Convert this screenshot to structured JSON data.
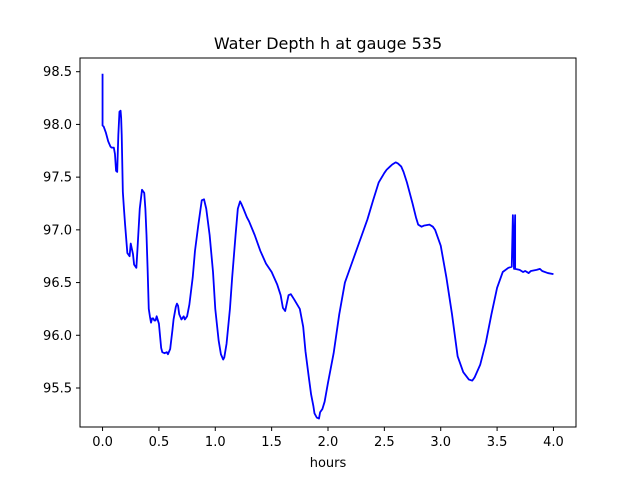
{
  "chart_data": {
    "type": "line",
    "title": "Water Depth h at gauge 535",
    "xlabel": "hours",
    "ylabel": "",
    "xlim": [
      -0.2,
      4.2
    ],
    "ylim": [
      95.13,
      98.63
    ],
    "xticks": [
      0.0,
      0.5,
      1.0,
      1.5,
      2.0,
      2.5,
      3.0,
      3.5,
      4.0
    ],
    "xtick_labels": [
      "0.0",
      "0.5",
      "1.0",
      "1.5",
      "2.0",
      "2.5",
      "3.0",
      "3.5",
      "4.0"
    ],
    "yticks": [
      95.5,
      96.0,
      96.5,
      97.0,
      97.5,
      98.0,
      98.5
    ],
    "ytick_labels": [
      "95.5",
      "96.0",
      "96.5",
      "97.0",
      "97.5",
      "98.0",
      "98.5"
    ],
    "grid": false,
    "legend": "none",
    "series": [
      {
        "color": "#0000ff",
        "x": [
          0.0,
          0.0,
          0.01,
          0.03,
          0.05,
          0.07,
          0.08,
          0.1,
          0.11,
          0.12,
          0.13,
          0.14,
          0.15,
          0.16,
          0.165,
          0.17,
          0.18,
          0.19,
          0.2,
          0.22,
          0.24,
          0.25,
          0.27,
          0.28,
          0.3,
          0.31,
          0.33,
          0.35,
          0.37,
          0.38,
          0.39,
          0.4,
          0.41,
          0.42,
          0.43,
          0.44,
          0.45,
          0.46,
          0.47,
          0.48,
          0.5,
          0.52,
          0.53,
          0.55,
          0.57,
          0.58,
          0.6,
          0.62,
          0.63,
          0.65,
          0.66,
          0.67,
          0.68,
          0.7,
          0.72,
          0.73,
          0.75,
          0.77,
          0.8,
          0.82,
          0.85,
          0.88,
          0.9,
          0.92,
          0.95,
          0.98,
          1.0,
          1.03,
          1.05,
          1.07,
          1.08,
          1.1,
          1.13,
          1.15,
          1.18,
          1.2,
          1.22,
          1.23,
          1.25,
          1.28,
          1.3,
          1.35,
          1.4,
          1.45,
          1.5,
          1.55,
          1.58,
          1.6,
          1.62,
          1.65,
          1.67,
          1.7,
          1.75,
          1.78,
          1.8,
          1.83,
          1.85,
          1.87,
          1.88,
          1.9,
          1.92,
          1.93,
          1.95,
          1.97,
          2.0,
          2.05,
          2.1,
          2.15,
          2.2,
          2.25,
          2.3,
          2.35,
          2.4,
          2.45,
          2.5,
          2.52,
          2.55,
          2.57,
          2.6,
          2.62,
          2.65,
          2.67,
          2.7,
          2.75,
          2.78,
          2.8,
          2.83,
          2.85,
          2.9,
          2.93,
          2.95,
          3.0,
          3.05,
          3.1,
          3.15,
          3.2,
          3.25,
          3.28,
          3.3,
          3.35,
          3.4,
          3.45,
          3.5,
          3.55,
          3.6,
          3.63,
          3.64,
          3.64,
          3.65,
          3.66,
          3.66,
          3.7,
          3.73,
          3.75,
          3.78,
          3.8,
          3.85,
          3.88,
          3.9,
          3.95,
          4.0
        ],
        "y": [
          98.48,
          97.99,
          97.98,
          97.92,
          97.84,
          97.79,
          97.78,
          97.78,
          97.72,
          97.56,
          97.55,
          97.9,
          98.12,
          98.13,
          98.06,
          97.9,
          97.36,
          97.2,
          97.05,
          96.78,
          96.75,
          96.87,
          96.77,
          96.67,
          96.64,
          96.82,
          97.2,
          97.38,
          97.35,
          97.2,
          96.95,
          96.62,
          96.25,
          96.18,
          96.12,
          96.16,
          96.16,
          96.14,
          96.14,
          96.18,
          96.11,
          95.88,
          95.84,
          95.83,
          95.84,
          95.82,
          95.87,
          96.05,
          96.15,
          96.27,
          96.3,
          96.28,
          96.2,
          96.15,
          96.18,
          96.15,
          96.18,
          96.29,
          96.55,
          96.8,
          97.05,
          97.28,
          97.29,
          97.2,
          96.95,
          96.6,
          96.25,
          95.95,
          95.82,
          95.77,
          95.79,
          95.92,
          96.25,
          96.55,
          96.95,
          97.2,
          97.27,
          97.25,
          97.2,
          97.12,
          97.08,
          96.95,
          96.8,
          96.68,
          96.6,
          96.48,
          96.38,
          96.26,
          96.23,
          96.38,
          96.39,
          96.34,
          96.25,
          96.08,
          95.85,
          95.6,
          95.44,
          95.33,
          95.26,
          95.22,
          95.21,
          95.27,
          95.3,
          95.37,
          95.55,
          95.83,
          96.2,
          96.5,
          96.65,
          96.8,
          96.95,
          97.1,
          97.28,
          97.45,
          97.54,
          97.57,
          97.6,
          97.62,
          97.64,
          97.63,
          97.6,
          97.55,
          97.45,
          97.25,
          97.12,
          97.05,
          97.03,
          97.04,
          97.05,
          97.03,
          97.0,
          96.85,
          96.55,
          96.2,
          95.8,
          95.65,
          95.58,
          95.57,
          95.6,
          95.72,
          95.93,
          96.2,
          96.45,
          96.6,
          96.64,
          96.65,
          97.14,
          97.14,
          96.63,
          97.14,
          96.63,
          96.62,
          96.6,
          96.61,
          96.59,
          96.61,
          96.62,
          96.63,
          96.61,
          96.59,
          96.58
        ]
      }
    ]
  }
}
